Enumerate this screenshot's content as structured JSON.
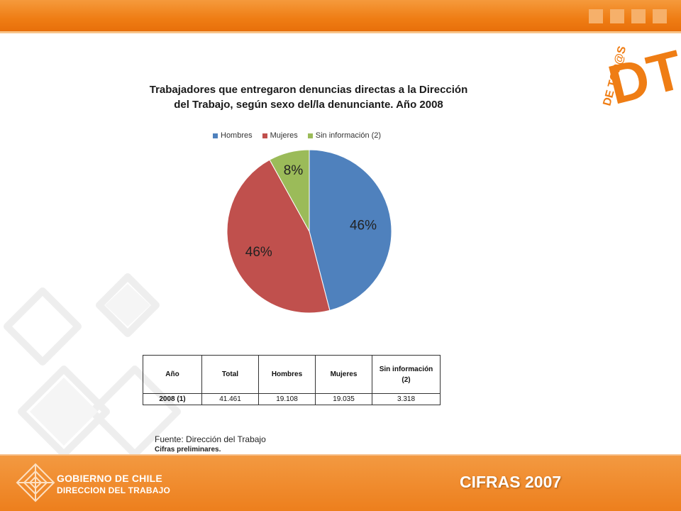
{
  "colors": {
    "hombres": "#4f81bd",
    "mujeres": "#c0504d",
    "sin_info": "#9bbb59",
    "accent_orange": "#ef7d14"
  },
  "chart_data": {
    "type": "pie",
    "title": "Trabajadores que entregaron denuncias directas a la Dirección del Trabajo, según sexo del/la denunciante. Año 2008",
    "legend_position": "top",
    "slices": [
      {
        "name": "Hombres",
        "value": 46,
        "label": "46%"
      },
      {
        "name": "Mujeres",
        "value": 46,
        "label": "46%"
      },
      {
        "name": "Sin información (2)",
        "value": 8,
        "label": "8%"
      }
    ]
  },
  "table": {
    "headers": [
      "Año",
      "Total",
      "Hombres",
      "Mujeres",
      "Sin información (2)"
    ],
    "rows": [
      [
        "2008 (1)",
        "41.461",
        "19.108",
        "19.035",
        "3.318"
      ]
    ]
  },
  "source": "Fuente: Dirección del Trabajo",
  "note": "Cifras preliminares.",
  "footer": {
    "gov_line1": "GOBIERNO DE CHILE",
    "gov_line2": "DIRECCION DEL TRABAJO",
    "cifras": "CIFRAS 2007"
  },
  "logo": {
    "letters": "DT",
    "tagline": "DE TOD@S"
  }
}
